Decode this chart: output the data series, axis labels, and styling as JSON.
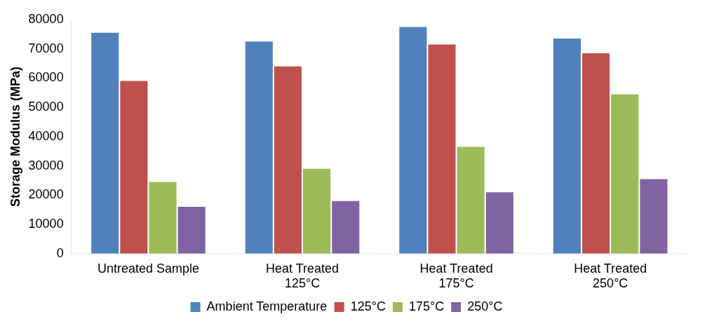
{
  "chart_data": {
    "type": "bar",
    "ylabel": "Storage Modulus (MPa)",
    "categories": [
      "Untreated Sample",
      "Heat Treated\n125°C",
      "Heat Treated\n175°C",
      "Heat Treated\n250°C"
    ],
    "series": [
      {
        "name": "Ambient Temperature",
        "color": "#4f81bd",
        "values": [
          75500,
          72500,
          77500,
          73500
        ]
      },
      {
        "name": "125°C",
        "color": "#c0504d",
        "values": [
          59000,
          64000,
          71500,
          68500
        ]
      },
      {
        "name": "175°C",
        "color": "#9bbb59",
        "values": [
          24500,
          29000,
          36500,
          54500
        ]
      },
      {
        "name": "250°C",
        "color": "#8064a2",
        "values": [
          16000,
          18000,
          21000,
          25500
        ]
      }
    ],
    "ylim": [
      0,
      80000
    ],
    "yticks": [
      0,
      10000,
      20000,
      30000,
      40000,
      50000,
      60000,
      70000,
      80000
    ],
    "grid": false,
    "legend": "bottom"
  }
}
